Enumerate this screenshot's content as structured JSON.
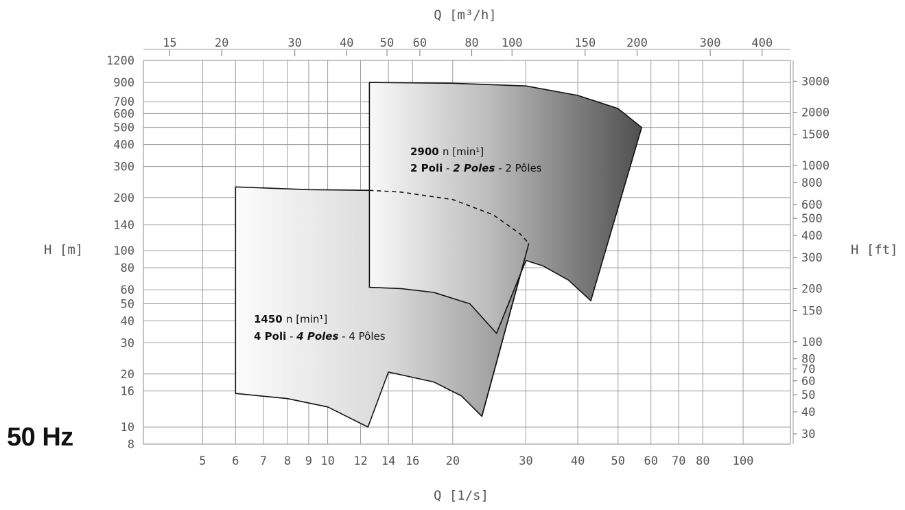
{
  "frequency_label": "50 Hz",
  "chart_data": {
    "type": "area",
    "title": "",
    "x_axis_bottom": {
      "label": "Q [1/s]",
      "scale": "log",
      "ticks": [
        5,
        6,
        7,
        8,
        9,
        10,
        12,
        14,
        16,
        20,
        30,
        40,
        50,
        60,
        70,
        80,
        100
      ]
    },
    "x_axis_top": {
      "label": "Q [m³/h]",
      "scale": "log",
      "ticks": [
        15,
        20,
        30,
        40,
        50,
        60,
        80,
        100,
        150,
        200,
        300,
        400
      ]
    },
    "y_axis_left": {
      "label": "H [m]",
      "scale": "log",
      "ticks": [
        8,
        10,
        16,
        20,
        30,
        40,
        50,
        60,
        80,
        100,
        140,
        200,
        300,
        400,
        500,
        600,
        700,
        900,
        1200
      ]
    },
    "y_axis_right": {
      "label": "H [ft]",
      "scale": "log",
      "ticks": [
        30,
        40,
        50,
        60,
        70,
        80,
        100,
        150,
        200,
        300,
        400,
        500,
        600,
        800,
        1000,
        1500,
        2000,
        3000
      ]
    },
    "xlim": [
      3.6,
      130
    ],
    "ylim": [
      8,
      1200
    ],
    "grid": true,
    "regions": [
      {
        "speed": "2900",
        "speed_unit": "n [min¹]",
        "poles_it": "2 Poli",
        "poles_en": "2 Poles",
        "poles_fr": "2 Pôles",
        "left_x": 12.6,
        "top_curve": [
          [
            12.6,
            900
          ],
          [
            20,
            890
          ],
          [
            30,
            860
          ],
          [
            40,
            760
          ],
          [
            50,
            640
          ],
          [
            57,
            500
          ]
        ],
        "right_edge": [
          [
            57,
            500
          ],
          [
            43,
            52
          ]
        ],
        "bottom_curve": [
          [
            43,
            52
          ],
          [
            38,
            68
          ],
          [
            33,
            82
          ],
          [
            30,
            88
          ]
        ],
        "junction": [
          [
            30,
            88
          ],
          [
            25.5,
            34
          ]
        ],
        "lower_curve": [
          [
            25.5,
            34
          ],
          [
            22,
            50
          ],
          [
            18,
            58
          ],
          [
            15,
            61
          ],
          [
            12.6,
            62
          ]
        ]
      },
      {
        "speed": "1450",
        "speed_unit": "n [min¹]",
        "poles_it": "4 Poli",
        "poles_en": "4 Poles",
        "poles_fr": "4 Pôles",
        "left_x": 6,
        "top_curve": [
          [
            6,
            230
          ],
          [
            9,
            222
          ],
          [
            12.6,
            220
          ]
        ],
        "top_curve_dashed": [
          [
            12.6,
            220
          ],
          [
            15,
            215
          ],
          [
            20,
            195
          ],
          [
            25,
            160
          ],
          [
            29,
            125
          ],
          [
            30.5,
            110
          ]
        ],
        "right_edge": [
          [
            30.5,
            110
          ],
          [
            23.5,
            11.5
          ]
        ],
        "bottom_curve_outer": [
          [
            23.5,
            11.5
          ],
          [
            21,
            15
          ],
          [
            18,
            18
          ],
          [
            14,
            20.5
          ]
        ],
        "notch": [
          [
            14,
            20.5
          ],
          [
            12.5,
            10
          ]
        ],
        "bottom_curve": [
          [
            12.5,
            10
          ],
          [
            10,
            13
          ],
          [
            8,
            14.5
          ],
          [
            6,
            15.5
          ]
        ]
      }
    ]
  }
}
